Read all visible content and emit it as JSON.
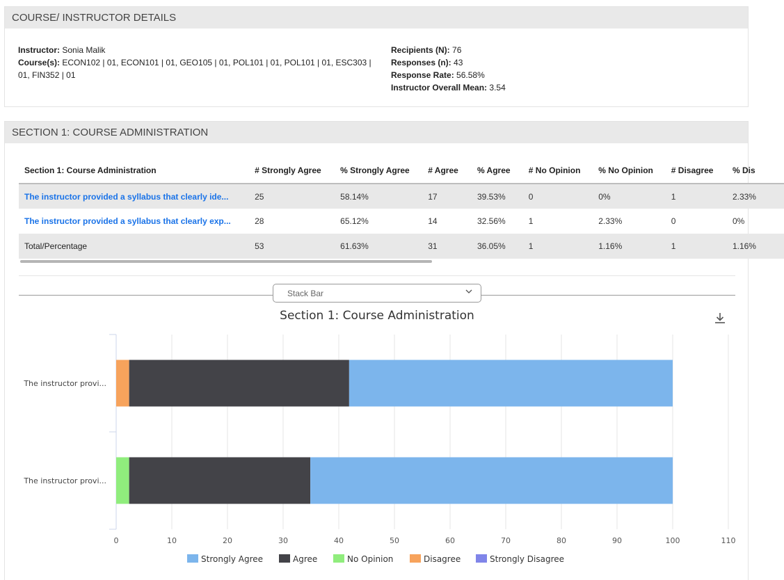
{
  "details": {
    "header": "COURSE/ INSTRUCTOR DETAILS",
    "instructor_label": "Instructor:",
    "instructor": "Sonia Malik",
    "courses_label": "Course(s):",
    "courses_line1": "ECON102 | 01, ECON101 | 01, GEO105 | 01, POL101 | 01, POL101 | 01, ESC303 |",
    "courses_line2": "01, FIN352 | 01",
    "recipients_label": "Recipients (N):",
    "recipients": "76",
    "responses_label": "Responses (n):",
    "responses": "43",
    "rate_label": "Response Rate:",
    "rate": "56.58%",
    "mean_label": "Instructor Overall Mean:",
    "mean": "3.54"
  },
  "section": {
    "header": "SECTION 1: COURSE ADMINISTRATION",
    "columns": [
      "Section 1: Course Administration",
      "# Strongly Agree",
      "% Strongly Agree",
      "# Agree",
      "% Agree",
      "# No Opinion",
      "% No Opinion",
      "# Disagree",
      "% Dis"
    ],
    "rows": [
      [
        "The instructor provided a syllabus that clearly ide...",
        "25",
        "58.14%",
        "17",
        "39.53%",
        "0",
        "0%",
        "1",
        "2.33%"
      ],
      [
        "The instructor provided a syllabus that clearly exp...",
        "28",
        "65.12%",
        "14",
        "32.56%",
        "1",
        "2.33%",
        "0",
        "0%"
      ],
      [
        "Total/Percentage",
        "53",
        "61.63%",
        "31",
        "36.05%",
        "1",
        "1.16%",
        "1",
        "1.16%"
      ]
    ],
    "chart_type_select": "Stack Bar"
  },
  "colors": {
    "strongly_agree": "#7cb5ec",
    "agree": "#434348",
    "no_opinion": "#90ed7d",
    "disagree": "#f7a35c",
    "strongly_disagree": "#8085e9"
  },
  "chart_data": {
    "type": "bar",
    "orientation": "horizontal",
    "stacked": true,
    "title": "Section 1: Course Administration",
    "categories": [
      "The instructor provi...",
      "The instructor provi..."
    ],
    "series": [
      {
        "name": "Strongly Agree",
        "values": [
          58.14,
          65.12
        ]
      },
      {
        "name": "Agree",
        "values": [
          39.53,
          32.56
        ]
      },
      {
        "name": "No Opinion",
        "values": [
          0,
          2.33
        ]
      },
      {
        "name": "Disagree",
        "values": [
          2.33,
          0
        ]
      },
      {
        "name": "Strongly Disagree",
        "values": [
          0,
          0
        ]
      }
    ],
    "xlim": [
      0,
      110
    ],
    "xticks": [
      "0",
      "10",
      "20",
      "30",
      "40",
      "50",
      "60",
      "70",
      "80",
      "90",
      "100",
      "110"
    ],
    "grid": true,
    "legend": "bottom"
  }
}
